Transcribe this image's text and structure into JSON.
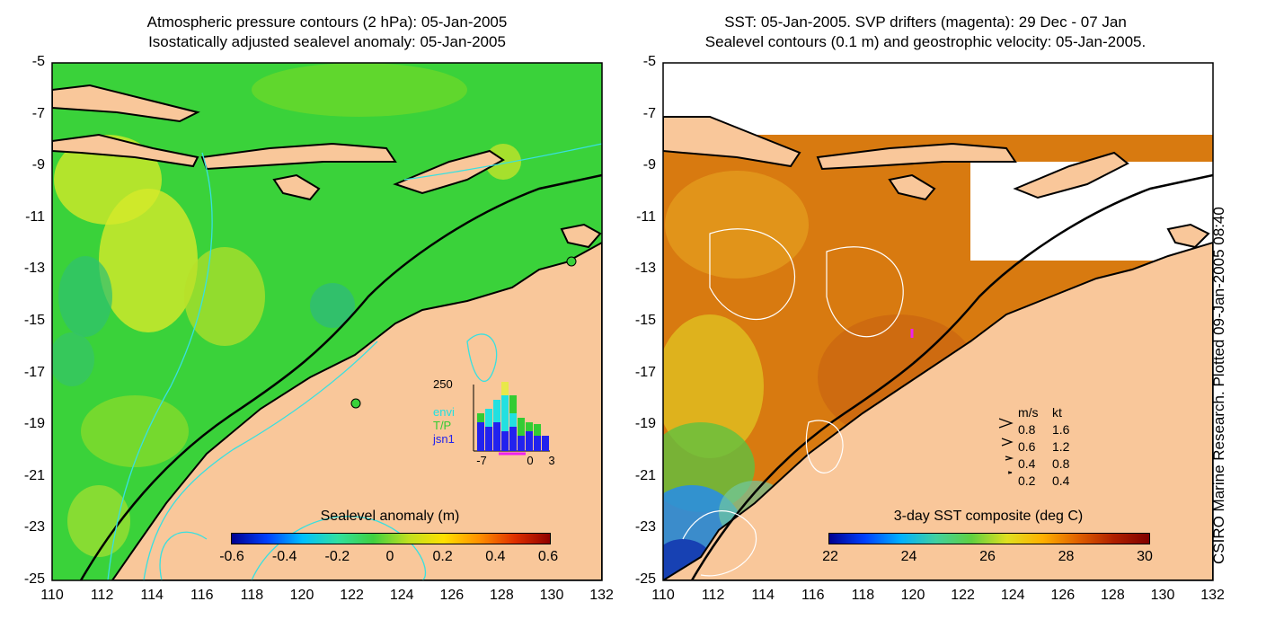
{
  "left_panel": {
    "title_line1": "Atmospheric pressure contours (2 hPa): 05-Jan-2005",
    "title_line2": "Isostatically adjusted sealevel anomaly: 05-Jan-2005",
    "colorbar_label": "Sealevel anomaly (m)",
    "colorbar_ticks": [
      "-0.6",
      "-0.4",
      "-0.2",
      "0",
      "0.2",
      "0.4",
      "0.6"
    ],
    "inset": {
      "top_value": "250",
      "legend": [
        {
          "label": "",
          "color": "#e8e84a"
        },
        {
          "label": "envi",
          "color": "#22e0e0"
        },
        {
          "label": "T/P",
          "color": "#33cc33"
        },
        {
          "label": "jsn1",
          "color": "#2222ee"
        }
      ],
      "axis_ticks": [
        "-7",
        "0",
        "3"
      ]
    }
  },
  "right_panel": {
    "title_line1": "SST: 05-Jan-2005. SVP drifters (magenta): 29 Dec - 07 Jan",
    "title_line2": "Sealevel contours (0.1 m) and geostrophic velocity: 05-Jan-2005.",
    "colorbar_label": "3-day SST composite (deg C)",
    "colorbar_ticks": [
      "22",
      "24",
      "26",
      "28",
      "30"
    ],
    "velocity_key": {
      "header_ms": "m/s",
      "header_kt": "kt",
      "rows": [
        {
          "ms": "0.8",
          "kt": "1.6"
        },
        {
          "ms": "0.6",
          "kt": "1.2"
        },
        {
          "ms": "0.4",
          "kt": "0.8"
        },
        {
          "ms": "0.2",
          "kt": "0.4"
        }
      ]
    }
  },
  "axes": {
    "y_ticks": [
      "-5",
      "-7",
      "-9",
      "-11",
      "-13",
      "-15",
      "-17",
      "-19",
      "-21",
      "-23",
      "-25"
    ],
    "x_ticks": [
      "110",
      "112",
      "114",
      "116",
      "118",
      "120",
      "122",
      "124",
      "126",
      "128",
      "130",
      "132"
    ]
  },
  "credit": "CSIRO Marine Research. Plotted 09-Jan-2005 08:40",
  "colors": {
    "land": "#f9c79a",
    "ocean_green": "#3ad23a",
    "sst_orange": "#d87a10",
    "coast": "#000000",
    "contour_cyan": "#38e0e0"
  }
}
